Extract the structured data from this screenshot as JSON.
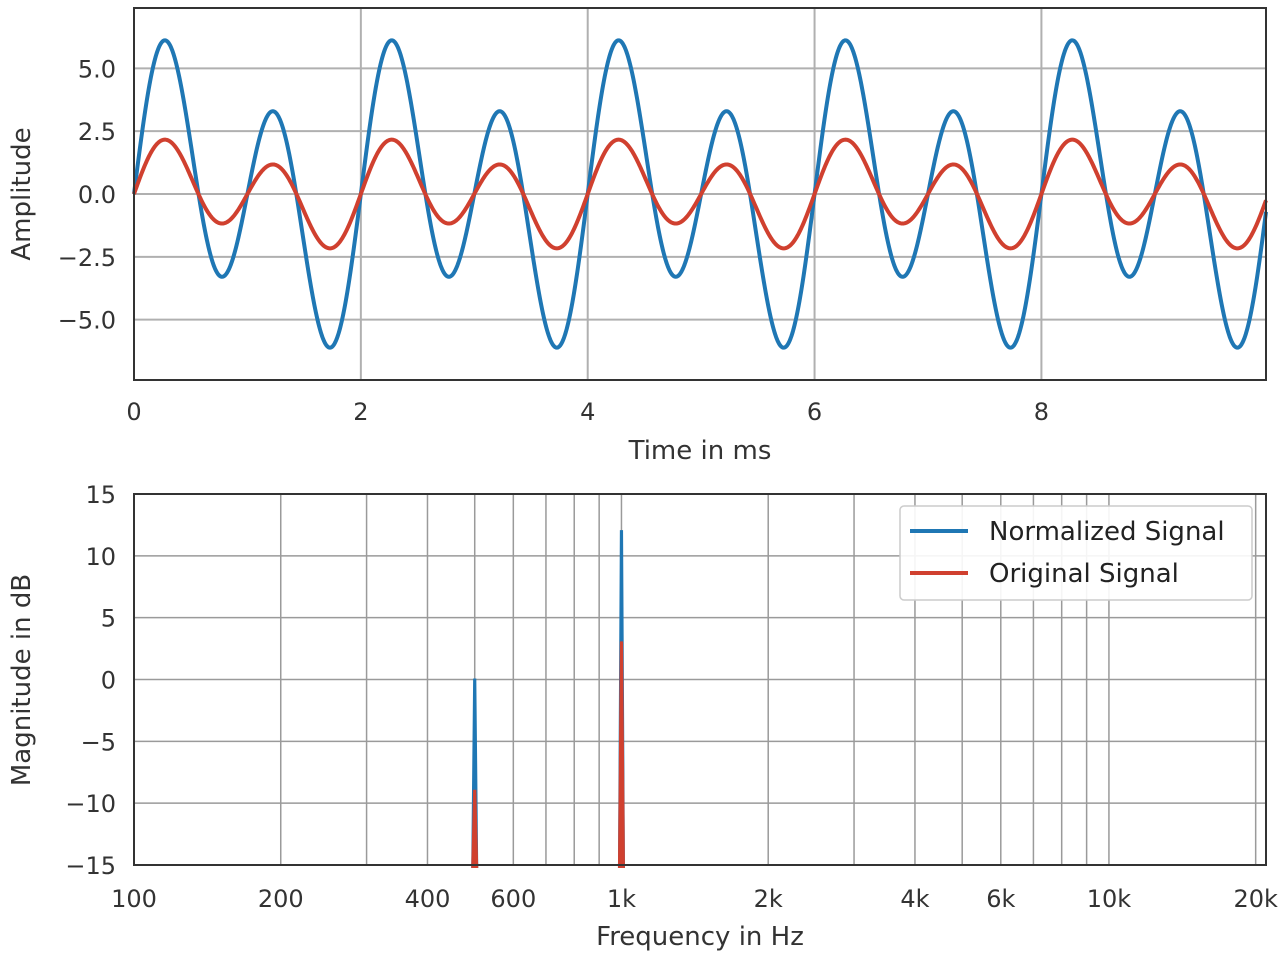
{
  "chart_data": [
    {
      "type": "line",
      "xlabel": "Time in ms",
      "ylabel": "Amplitude",
      "xlim": [
        0,
        9.98
      ],
      "ylim": [
        -7.4,
        7.4
      ],
      "xticks": [
        0,
        2,
        4,
        6,
        8
      ],
      "xtick_labels": [
        "0",
        "2",
        "4",
        "6",
        "8"
      ],
      "yticks": [
        5.0,
        2.5,
        0.0,
        -2.5,
        -5.0
      ],
      "ytick_labels": [
        "5.0",
        "2.5",
        "0.0",
        "−2.5",
        "−5.0"
      ],
      "grid": true,
      "series": [
        {
          "name": "Normalized Signal",
          "color": "#1f77b4",
          "components": [
            {
              "freq_khz": 1.0,
              "amplitude": 4.65
            },
            {
              "freq_khz": 0.5,
              "amplitude": 2.0
            }
          ]
        },
        {
          "name": "Original Signal",
          "color": "#d0402f",
          "components": [
            {
              "freq_khz": 1.0,
              "amplitude": 1.65
            },
            {
              "freq_khz": 0.5,
              "amplitude": 0.7
            }
          ]
        }
      ]
    },
    {
      "type": "line",
      "xlabel": "Frequency in Hz",
      "ylabel": "Magnitude in dB",
      "xscale": "log",
      "xlim": [
        100,
        21000
      ],
      "ylim": [
        -15,
        15
      ],
      "xticks": [
        100,
        200,
        400,
        600,
        1000,
        2000,
        4000,
        6000,
        10000,
        20000
      ],
      "xtick_labels": [
        "100",
        "200",
        "400",
        "600",
        "1k",
        "2k",
        "4k",
        "6k",
        "10k",
        "20k"
      ],
      "minor_gridlines": [
        300,
        500,
        700,
        800,
        900,
        3000,
        5000,
        7000,
        8000,
        9000
      ],
      "yticks": [
        15,
        10,
        5,
        0,
        -5,
        -10,
        -15
      ],
      "ytick_labels": [
        "15",
        "10",
        "5",
        "0",
        "−5",
        "−10",
        "−15"
      ],
      "grid": true,
      "legend_position": "top-right",
      "series": [
        {
          "name": "Normalized Signal",
          "color": "#1f77b4",
          "peaks": [
            {
              "freq_hz": 500,
              "db": 0
            },
            {
              "freq_hz": 1000,
              "db": 12
            }
          ]
        },
        {
          "name": "Original Signal",
          "color": "#d0402f",
          "peaks": [
            {
              "freq_hz": 500,
              "db": -9
            },
            {
              "freq_hz": 1000,
              "db": 3
            }
          ]
        }
      ]
    }
  ]
}
